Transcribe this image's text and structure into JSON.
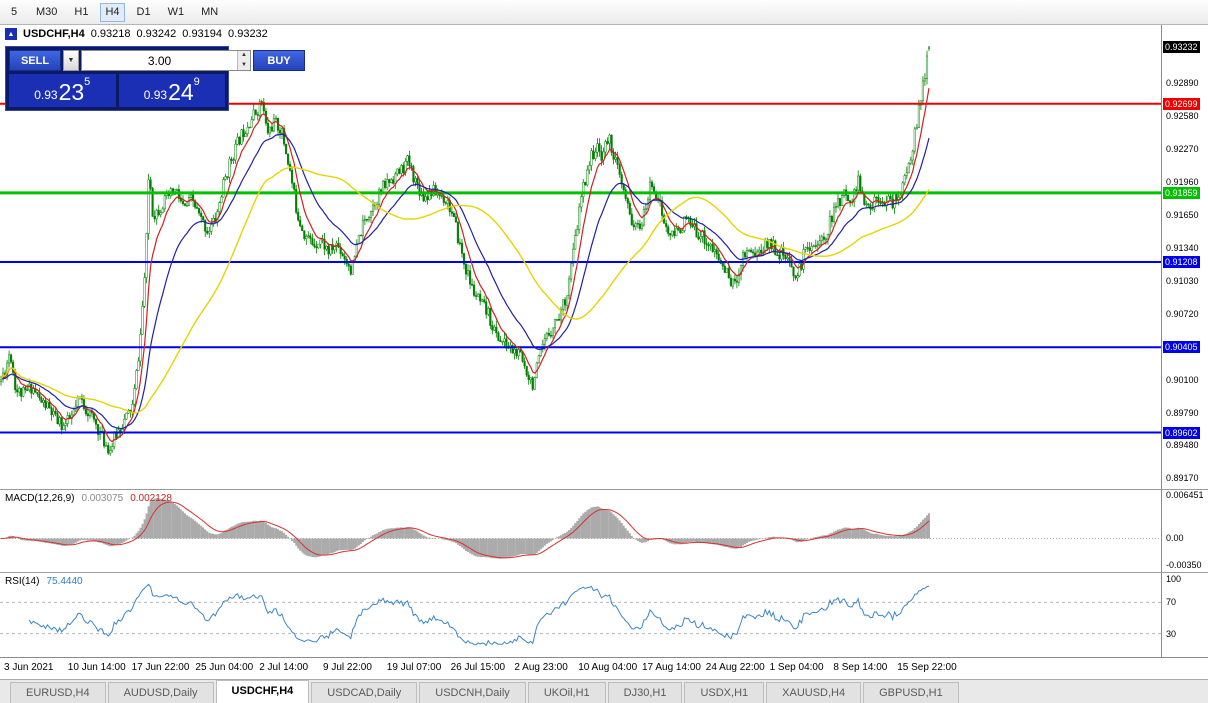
{
  "toolbar": {
    "timeframes": [
      "5",
      "M30",
      "H1",
      "H4",
      "D1",
      "W1",
      "MN"
    ],
    "active": "H4"
  },
  "header": {
    "collapse_icon": "▲",
    "title": "USDCHF,H4",
    "open": "0.93218",
    "high": "0.93242",
    "low": "0.93194",
    "close": "0.93232"
  },
  "one_click": {
    "sell_label": "SELL",
    "buy_label": "BUY",
    "volume": "3.00",
    "sell_price_base": "0.93",
    "sell_price_big": "23",
    "sell_price_sup": "5",
    "buy_price_base": "0.93",
    "buy_price_big": "24",
    "buy_price_sup": "9"
  },
  "price_axis": {
    "current": "0.93232",
    "ticks": [
      "0.92890",
      "0.92580",
      "0.92270",
      "0.91960",
      "0.91650",
      "0.91340",
      "0.91030",
      "0.90720",
      "0.90410",
      "0.90100",
      "0.89790",
      "0.89480",
      "0.89170"
    ]
  },
  "macd_panel": {
    "label": "MACD(12,26,9)",
    "main_value": "0.003075",
    "signal_value": "0.002128",
    "axis": [
      "0.006451",
      "0.00",
      "-0.00350"
    ]
  },
  "rsi_panel": {
    "label": "RSI(14)",
    "value": "75.4440",
    "axis": [
      "100",
      "70",
      "30"
    ]
  },
  "time_axis": {
    "labels": [
      "3 Jun 2021",
      "10 Jun 14:00",
      "17 Jun 22:00",
      "25 Jun 04:00",
      "2 Jul 14:00",
      "9 Jul 22:00",
      "19 Jul 07:00",
      "26 Jul 15:00",
      "2 Aug 23:00",
      "10 Aug 04:00",
      "17 Aug 14:00",
      "24 Aug 22:00",
      "1 Sep 04:00",
      "8 Sep 14:00",
      "15 Sep 22:00"
    ]
  },
  "tabs": {
    "active_index": 2,
    "items": [
      "EURUSD,H4",
      "AUDUSD,Daily",
      "USDCHF,H4",
      "USDCAD,Daily",
      "USDCNH,Daily",
      "UKOil,H1",
      "DJ30,H1",
      "USDX,H1",
      "XAUUSD,H4",
      "GBPUSD,H1"
    ]
  },
  "chart_data": {
    "type": "candlestick",
    "symbol": "USDCHF",
    "timeframe": "H4",
    "visible_range": {
      "from": "3 Jun 2021",
      "to": "17 Sep 2021"
    },
    "price_range": {
      "top": 0.9344,
      "bottom": 0.8907
    },
    "candle_area_width": 930,
    "candle_count": 460,
    "noise_seed": 11,
    "last_candle": {
      "o": 0.93218,
      "h": 0.93242,
      "l": 0.93194,
      "c": 0.93232
    },
    "anchors": [
      [
        0,
        0.9008
      ],
      [
        6,
        0.9022
      ],
      [
        10,
        0.9038
      ],
      [
        16,
        0.9
      ],
      [
        24,
        0.8996
      ],
      [
        32,
        0.9004
      ],
      [
        40,
        0.899
      ],
      [
        48,
        0.8984
      ],
      [
        56,
        0.8972
      ],
      [
        64,
        0.8966
      ],
      [
        72,
        0.8975
      ],
      [
        80,
        0.8992
      ],
      [
        88,
        0.898
      ],
      [
        96,
        0.8968
      ],
      [
        104,
        0.8952
      ],
      [
        110,
        0.8944
      ],
      [
        117,
        0.896
      ],
      [
        125,
        0.8972
      ],
      [
        133,
        0.8986
      ],
      [
        140,
        0.9045
      ],
      [
        146,
        0.9125
      ],
      [
        149,
        0.921
      ],
      [
        153,
        0.9165
      ],
      [
        160,
        0.9172
      ],
      [
        168,
        0.9182
      ],
      [
        176,
        0.9188
      ],
      [
        184,
        0.917
      ],
      [
        192,
        0.918
      ],
      [
        200,
        0.9162
      ],
      [
        208,
        0.915
      ],
      [
        216,
        0.9162
      ],
      [
        224,
        0.9196
      ],
      [
        232,
        0.922
      ],
      [
        240,
        0.9238
      ],
      [
        248,
        0.9252
      ],
      [
        256,
        0.9262
      ],
      [
        262,
        0.9272
      ],
      [
        267,
        0.9242
      ],
      [
        274,
        0.9252
      ],
      [
        281,
        0.9246
      ],
      [
        289,
        0.9212
      ],
      [
        297,
        0.9168
      ],
      [
        305,
        0.9146
      ],
      [
        313,
        0.9138
      ],
      [
        321,
        0.9142
      ],
      [
        329,
        0.913
      ],
      [
        337,
        0.9138
      ],
      [
        345,
        0.9125
      ],
      [
        352,
        0.9112
      ],
      [
        360,
        0.9148
      ],
      [
        368,
        0.9166
      ],
      [
        376,
        0.918
      ],
      [
        384,
        0.9192
      ],
      [
        392,
        0.92
      ],
      [
        400,
        0.9206
      ],
      [
        408,
        0.9216
      ],
      [
        416,
        0.9196
      ],
      [
        424,
        0.9182
      ],
      [
        432,
        0.9188
      ],
      [
        440,
        0.9184
      ],
      [
        448,
        0.9178
      ],
      [
        456,
        0.9152
      ],
      [
        464,
        0.912
      ],
      [
        472,
        0.9096
      ],
      [
        480,
        0.9082
      ],
      [
        488,
        0.9072
      ],
      [
        496,
        0.9052
      ],
      [
        504,
        0.9044
      ],
      [
        512,
        0.9038
      ],
      [
        520,
        0.9032
      ],
      [
        527,
        0.9018
      ],
      [
        533,
        0.9006
      ],
      [
        539,
        0.9028
      ],
      [
        546,
        0.9048
      ],
      [
        553,
        0.9062
      ],
      [
        560,
        0.9072
      ],
      [
        567,
        0.9092
      ],
      [
        574,
        0.9134
      ],
      [
        581,
        0.918
      ],
      [
        588,
        0.9212
      ],
      [
        595,
        0.9228
      ],
      [
        602,
        0.9222
      ],
      [
        609,
        0.9238
      ],
      [
        616,
        0.9214
      ],
      [
        623,
        0.9188
      ],
      [
        630,
        0.9164
      ],
      [
        637,
        0.915
      ],
      [
        644,
        0.9164
      ],
      [
        651,
        0.9196
      ],
      [
        658,
        0.9182
      ],
      [
        665,
        0.9154
      ],
      [
        672,
        0.9144
      ],
      [
        679,
        0.9152
      ],
      [
        686,
        0.916
      ],
      [
        693,
        0.9152
      ],
      [
        700,
        0.9148
      ],
      [
        707,
        0.914
      ],
      [
        714,
        0.913
      ],
      [
        721,
        0.912
      ],
      [
        728,
        0.9108
      ],
      [
        735,
        0.9098
      ],
      [
        742,
        0.9126
      ],
      [
        749,
        0.9134
      ],
      [
        756,
        0.9128
      ],
      [
        763,
        0.9134
      ],
      [
        770,
        0.914
      ],
      [
        777,
        0.9132
      ],
      [
        784,
        0.9126
      ],
      [
        791,
        0.9114
      ],
      [
        798,
        0.9108
      ],
      [
        805,
        0.9132
      ],
      [
        812,
        0.914
      ],
      [
        819,
        0.9136
      ],
      [
        826,
        0.9148
      ],
      [
        833,
        0.9166
      ],
      [
        840,
        0.918
      ],
      [
        847,
        0.9186
      ],
      [
        853,
        0.9178
      ],
      [
        858,
        0.9202
      ],
      [
        863,
        0.9176
      ],
      [
        870,
        0.917
      ],
      [
        877,
        0.9184
      ],
      [
        884,
        0.918
      ],
      [
        891,
        0.9176
      ],
      [
        897,
        0.9182
      ],
      [
        903,
        0.9192
      ],
      [
        909,
        0.9212
      ],
      [
        915,
        0.9242
      ],
      [
        920,
        0.9268
      ],
      [
        924,
        0.9292
      ],
      [
        928,
        0.932
      ]
    ],
    "horizontal_lines": [
      {
        "price": 0.92699,
        "label": "0.92699",
        "color": "#ee0000",
        "width": 2
      },
      {
        "price": 0.91859,
        "label": "0.91859",
        "color": "#00c000",
        "width": 3
      },
      {
        "price": 0.91208,
        "label": "0.91208",
        "color": "#0000ee",
        "width": 2
      },
      {
        "price": 0.90405,
        "label": "0.90405",
        "color": "#0000ee",
        "width": 2
      },
      {
        "price": 0.89602,
        "label": "0.89602",
        "color": "#0000ee",
        "width": 2
      }
    ],
    "moving_averages": [
      {
        "type": "ema",
        "period": 8,
        "color": "#d02020",
        "width": 1.2
      },
      {
        "type": "ema",
        "period": 24,
        "color": "#2020a8",
        "width": 1.2
      },
      {
        "type": "sma",
        "period": 60,
        "color": "#e6d400",
        "width": 1.4
      }
    ],
    "macd": {
      "fast": 12,
      "slow": 26,
      "signal": 9,
      "current_main": 0.003075,
      "current_signal": 0.002128,
      "range": {
        "top": 0.0065,
        "bottom": -0.0045
      },
      "histogram_color": "#ababab",
      "signal_color": "#d83030"
    },
    "rsi": {
      "period": 14,
      "current": 75.444,
      "levels": [
        70,
        30
      ],
      "color": "#3a86c8"
    },
    "candle_up_fill": "#ffffff",
    "candle_down_fill": "#008000",
    "candle_stroke": "#008000",
    "current_price_tag_color": "#000000"
  }
}
